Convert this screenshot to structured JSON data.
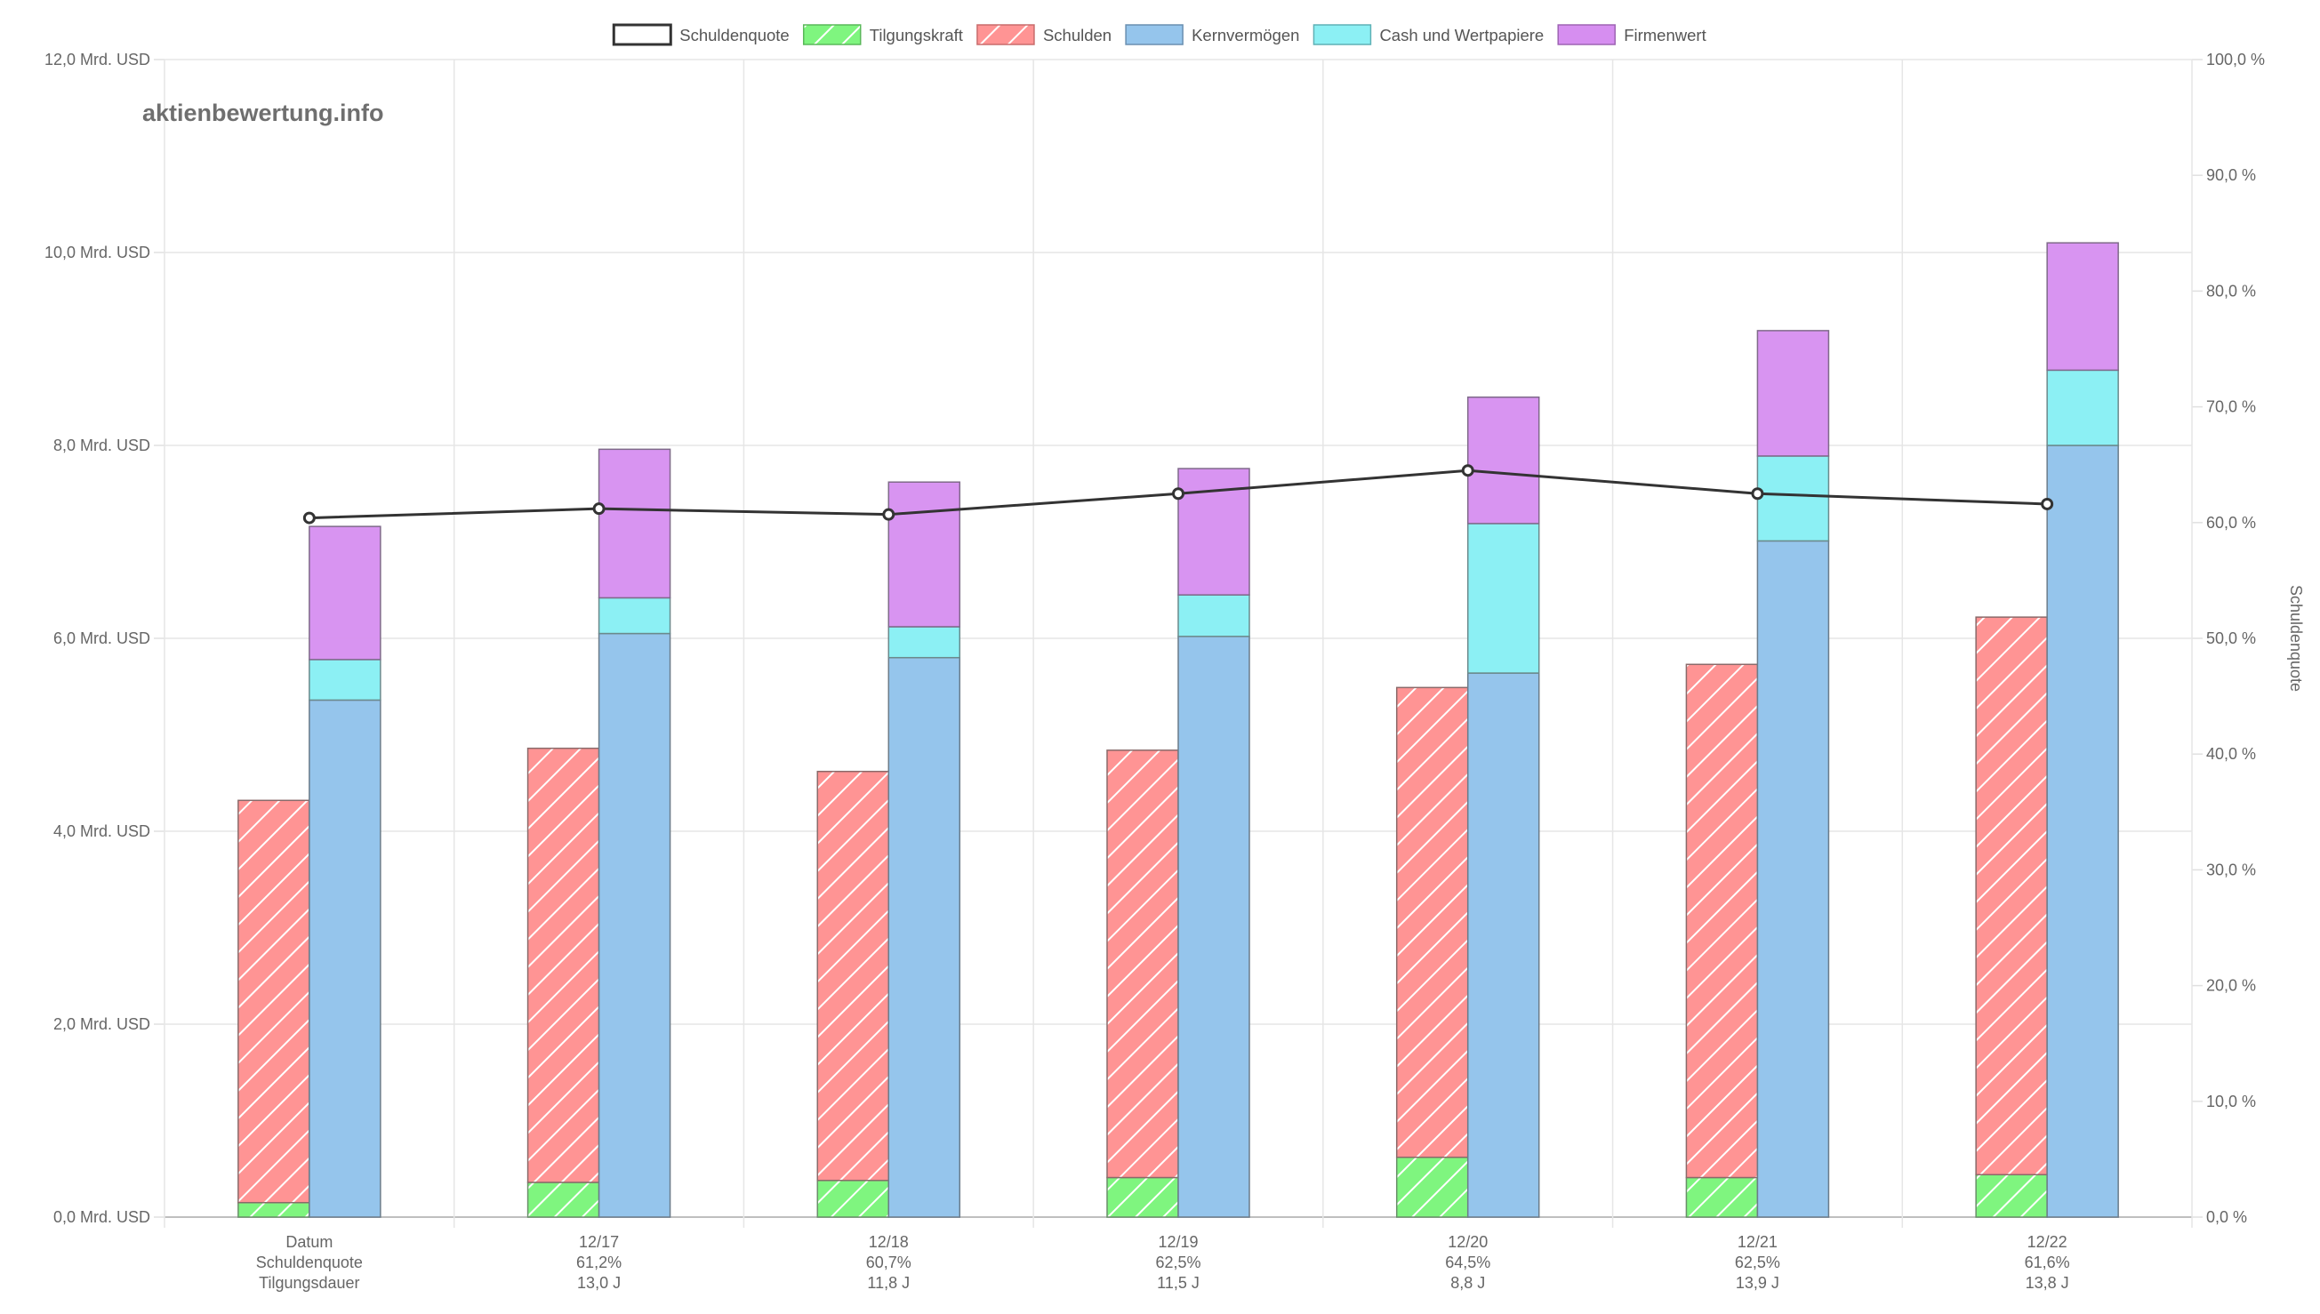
{
  "watermark": "aktienbewertung.info",
  "chart_data": {
    "type": "bar",
    "categories": [
      "Datum",
      "12/17",
      "12/18",
      "12/19",
      "12/20",
      "12/21",
      "12/22"
    ],
    "category_sublabels": [
      {
        "schuldenquote": "Schuldenquote",
        "tilgungsdauer": "Tilgungsdauer"
      },
      {
        "schuldenquote": "61,2%",
        "tilgungsdauer": "13,0 J"
      },
      {
        "schuldenquote": "60,7%",
        "tilgungsdauer": "11,8 J"
      },
      {
        "schuldenquote": "62,5%",
        "tilgungsdauer": "11,5 J"
      },
      {
        "schuldenquote": "64,5%",
        "tilgungsdauer": "8,8 J"
      },
      {
        "schuldenquote": "62,5%",
        "tilgungsdauer": "13,9 J"
      },
      {
        "schuldenquote": "61,6%",
        "tilgungsdauer": "13,8 J"
      }
    ],
    "legend": [
      {
        "name": "Schuldenquote",
        "color": "#ffffff",
        "border": "#333333",
        "pattern": "none"
      },
      {
        "name": "Tilgungskraft",
        "color": "#7ff57f",
        "border": "#59b859",
        "pattern": "hatch"
      },
      {
        "name": "Schulden",
        "color": "#ff9494",
        "border": "#c86b6b",
        "pattern": "hatch"
      },
      {
        "name": "Kernvermögen",
        "color": "#95c5ec",
        "border": "#6a8fb0",
        "pattern": "none"
      },
      {
        "name": "Cash und Wertpapiere",
        "color": "#8cf0f4",
        "border": "#5fb0b5",
        "pattern": "none"
      },
      {
        "name": "Firmenwert",
        "color": "#d68ef0",
        "border": "#9d64b3",
        "pattern": "none"
      }
    ],
    "series": [
      {
        "name": "Tilgungskraft",
        "stack": "debt",
        "values": [
          0.15,
          0.36,
          0.38,
          0.41,
          0.62,
          0.41,
          0.44
        ]
      },
      {
        "name": "Schulden",
        "stack": "debt",
        "values": [
          4.17,
          4.5,
          4.24,
          4.43,
          4.87,
          5.32,
          5.78
        ]
      },
      {
        "name": "Kernvermögen",
        "stack": "assets",
        "values": [
          5.36,
          6.05,
          5.8,
          6.02,
          5.64,
          7.01,
          8.0
        ]
      },
      {
        "name": "Cash und Wertpapiere",
        "stack": "assets",
        "values": [
          0.42,
          0.37,
          0.32,
          0.43,
          1.55,
          0.88,
          0.78
        ]
      },
      {
        "name": "Firmenwert",
        "stack": "assets",
        "values": [
          1.38,
          1.54,
          1.5,
          1.31,
          1.31,
          1.3,
          1.32
        ]
      },
      {
        "name": "Schuldenquote",
        "type": "line",
        "axis": "right",
        "values": [
          60.4,
          61.2,
          60.7,
          62.5,
          64.5,
          62.5,
          61.6
        ]
      }
    ],
    "y_left": {
      "min": 0,
      "max": 12,
      "step": 2,
      "tick_labels": [
        "0,0 Mrd. USD",
        "2,0 Mrd. USD",
        "4,0 Mrd. USD",
        "6,0 Mrd. USD",
        "8,0 Mrd. USD",
        "10,0 Mrd. USD",
        "12,0 Mrd. USD"
      ]
    },
    "y_right": {
      "min": 0,
      "max": 100,
      "step": 10,
      "label": "Schuldenquote",
      "tick_labels": [
        "0,0 %",
        "10,0 %",
        "20,0 %",
        "30,0 %",
        "40,0 %",
        "50,0 %",
        "60,0 %",
        "70,0 %",
        "80,0 %",
        "90,0 %",
        "100,0 %"
      ]
    },
    "grid": true,
    "legend_position": "top"
  }
}
